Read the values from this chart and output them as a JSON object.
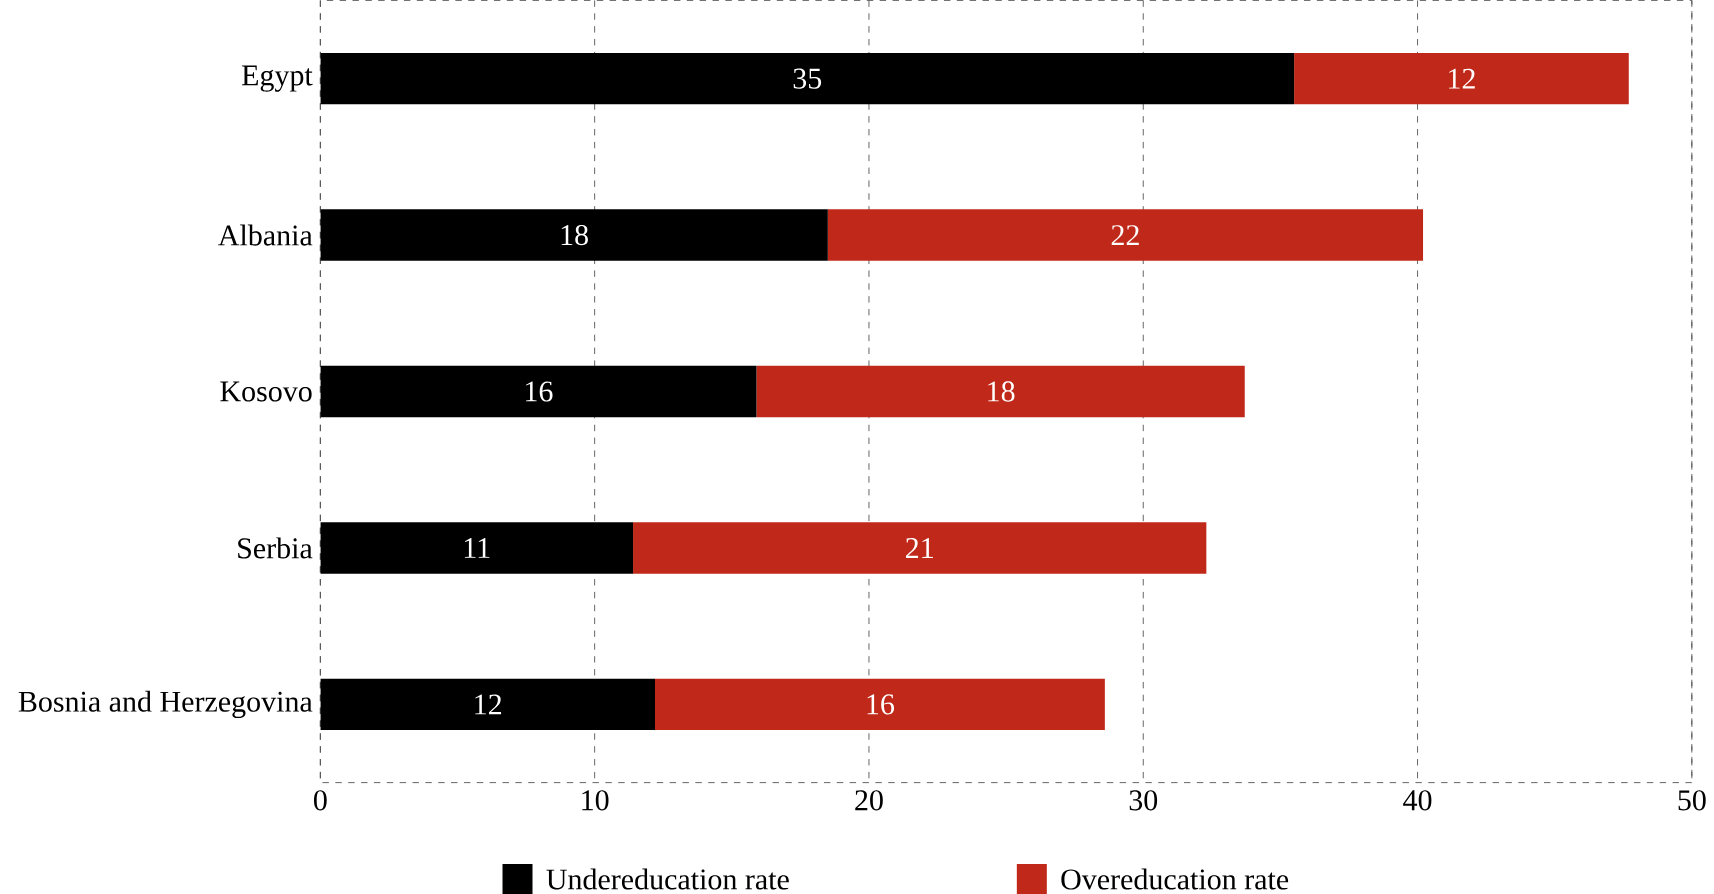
{
  "chart_data": {
    "type": "bar",
    "orientation": "horizontal",
    "stacked": true,
    "categories": [
      "Egypt",
      "Albania",
      "Kosovo",
      "Serbia",
      "Bosnia and Herzegovina"
    ],
    "series": [
      {
        "name": "Undereducation rate",
        "color": "#000000",
        "values": [
          35.5,
          18.5,
          15.9,
          11.4,
          12.2
        ],
        "value_labels": [
          "35",
          "18",
          "16",
          "11",
          "12"
        ]
      },
      {
        "name": "Overeducation rate",
        "color": "#c0291a",
        "values": [
          12.2,
          21.7,
          17.8,
          20.9,
          16.4
        ],
        "value_labels": [
          "12",
          "22",
          "18",
          "21",
          "16"
        ]
      }
    ],
    "xlim": [
      0,
      50
    ],
    "xticks": [
      0,
      10,
      20,
      30,
      40,
      50
    ],
    "grid": "x",
    "legend": "bottom"
  }
}
